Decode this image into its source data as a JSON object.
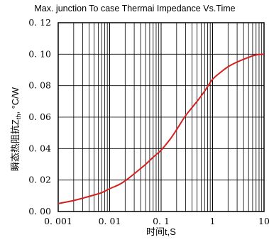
{
  "chart_data": {
    "type": "line",
    "title": "Max. junction To case Thermai Impedance Vs.Time",
    "xlabel": "时间t,S",
    "ylabel": "瞬态热阻抗Zth, °C/W",
    "ylabel_main": "瞬态热阻抗Z",
    "ylabel_sub": "th",
    "ylabel_unit": ", °C/W",
    "x_scale": "log",
    "xlim": [
      0.001,
      10
    ],
    "ylim": [
      0,
      0.12
    ],
    "grid": true,
    "x_tick_labels": [
      "0. 001",
      "0. 01",
      "0. 1",
      "1",
      "10"
    ],
    "x_tick_values": [
      0.001,
      0.01,
      0.1,
      1,
      10
    ],
    "y_tick_labels": [
      "0. 00",
      "0. 02",
      "0. 04",
      "0. 06",
      "0. 08",
      "0. 10",
      "0. 12"
    ],
    "y_tick_values": [
      0,
      0.02,
      0.04,
      0.06,
      0.08,
      0.1,
      0.12
    ],
    "line_color": "#d42020",
    "series": [
      {
        "x": [
          0.001,
          0.002,
          0.003,
          0.005,
          0.007,
          0.01,
          0.015,
          0.02,
          0.03,
          0.05,
          0.07,
          0.1,
          0.15,
          0.2,
          0.3,
          0.5,
          0.7,
          1,
          1.5,
          2,
          3,
          5,
          7,
          10
        ],
        "y": [
          0.005,
          0.007,
          0.0085,
          0.0105,
          0.012,
          0.0145,
          0.017,
          0.0195,
          0.024,
          0.03,
          0.0345,
          0.039,
          0.046,
          0.052,
          0.061,
          0.07,
          0.0765,
          0.084,
          0.089,
          0.092,
          0.095,
          0.098,
          0.0995,
          0.1
        ]
      }
    ]
  }
}
